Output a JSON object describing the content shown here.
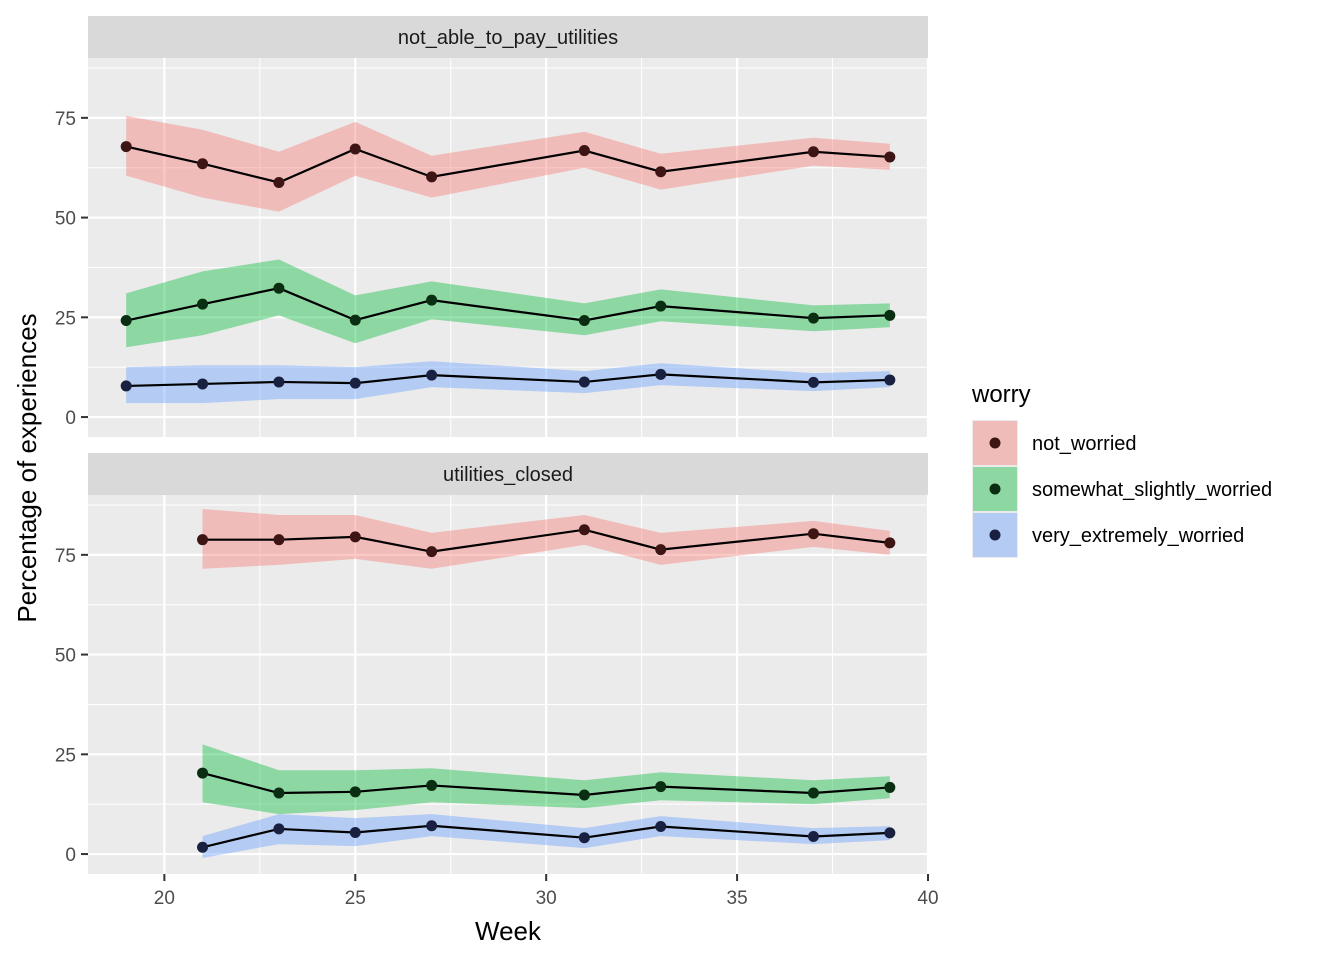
{
  "chart_data": {
    "type": "line",
    "xlabel": "Week",
    "ylabel": "Percentage of experiences",
    "xlim": [
      18,
      40
    ],
    "ylim": [
      -5,
      90
    ],
    "x_ticks": [
      20,
      25,
      30,
      35,
      40
    ],
    "y_ticks": [
      0,
      25,
      50,
      75
    ],
    "legend": {
      "title": "worry",
      "placement": "right",
      "entries": [
        "not_worried",
        "somewhat_slightly_worried",
        "very_extremely_worried"
      ]
    },
    "series_colors": {
      "not_worried": {
        "ribbon": "#F8766D",
        "point": "#3d1515"
      },
      "somewhat_slightly_worried": {
        "ribbon": "#00BA38",
        "point": "#0a2e12"
      },
      "very_extremely_worried": {
        "ribbon": "#619CFF",
        "point": "#1a2140"
      }
    },
    "panels": [
      {
        "name": "not_able_to_pay_utilities",
        "series": [
          {
            "key": "not_worried",
            "points": [
              {
                "x": 19,
                "y": 67.8,
                "lo": 60.5,
                "hi": 75.5
              },
              {
                "x": 21,
                "y": 63.5,
                "lo": 55.0,
                "hi": 72.0
              },
              {
                "x": 23,
                "y": 58.8,
                "lo": 51.5,
                "hi": 66.5
              },
              {
                "x": 25,
                "y": 67.2,
                "lo": 60.5,
                "hi": 74.0
              },
              {
                "x": 27,
                "y": 60.2,
                "lo": 55.0,
                "hi": 65.5
              },
              {
                "x": 31,
                "y": 66.8,
                "lo": 62.5,
                "hi": 71.5
              },
              {
                "x": 33,
                "y": 61.5,
                "lo": 57.0,
                "hi": 66.0
              },
              {
                "x": 37,
                "y": 66.5,
                "lo": 63.0,
                "hi": 70.0
              },
              {
                "x": 39,
                "y": 65.2,
                "lo": 62.0,
                "hi": 68.5
              }
            ]
          },
          {
            "key": "somewhat_slightly_worried",
            "points": [
              {
                "x": 19,
                "y": 24.2,
                "lo": 17.5,
                "hi": 31.0
              },
              {
                "x": 21,
                "y": 28.3,
                "lo": 20.5,
                "hi": 36.5
              },
              {
                "x": 23,
                "y": 32.3,
                "lo": 25.5,
                "hi": 39.5
              },
              {
                "x": 25,
                "y": 24.3,
                "lo": 18.5,
                "hi": 30.5
              },
              {
                "x": 27,
                "y": 29.3,
                "lo": 24.5,
                "hi": 34.0
              },
              {
                "x": 31,
                "y": 24.2,
                "lo": 20.5,
                "hi": 28.5
              },
              {
                "x": 33,
                "y": 27.8,
                "lo": 24.0,
                "hi": 32.0
              },
              {
                "x": 37,
                "y": 24.8,
                "lo": 21.5,
                "hi": 28.0
              },
              {
                "x": 39,
                "y": 25.5,
                "lo": 22.5,
                "hi": 28.5
              }
            ]
          },
          {
            "key": "very_extremely_worried",
            "points": [
              {
                "x": 19,
                "y": 7.8,
                "lo": 3.5,
                "hi": 12.5
              },
              {
                "x": 21,
                "y": 8.3,
                "lo": 3.5,
                "hi": 13.0
              },
              {
                "x": 23,
                "y": 8.8,
                "lo": 4.5,
                "hi": 13.0
              },
              {
                "x": 25,
                "y": 8.5,
                "lo": 4.5,
                "hi": 12.5
              },
              {
                "x": 27,
                "y": 10.5,
                "lo": 7.5,
                "hi": 14.0
              },
              {
                "x": 31,
                "y": 8.8,
                "lo": 6.0,
                "hi": 11.5
              },
              {
                "x": 33,
                "y": 10.7,
                "lo": 8.0,
                "hi": 13.5
              },
              {
                "x": 37,
                "y": 8.7,
                "lo": 6.5,
                "hi": 11.0
              },
              {
                "x": 39,
                "y": 9.3,
                "lo": 7.5,
                "hi": 11.5
              }
            ]
          }
        ]
      },
      {
        "name": "utilities_closed",
        "series": [
          {
            "key": "not_worried",
            "points": [
              {
                "x": 21,
                "y": 78.8,
                "lo": 71.5,
                "hi": 86.5
              },
              {
                "x": 23,
                "y": 78.8,
                "lo": 72.5,
                "hi": 85.0
              },
              {
                "x": 25,
                "y": 79.5,
                "lo": 74.0,
                "hi": 85.0
              },
              {
                "x": 27,
                "y": 75.8,
                "lo": 71.5,
                "hi": 80.5
              },
              {
                "x": 31,
                "y": 81.3,
                "lo": 77.5,
                "hi": 85.0
              },
              {
                "x": 33,
                "y": 76.3,
                "lo": 72.5,
                "hi": 80.5
              },
              {
                "x": 37,
                "y": 80.3,
                "lo": 77.0,
                "hi": 83.5
              },
              {
                "x": 39,
                "y": 78.0,
                "lo": 75.0,
                "hi": 81.0
              }
            ]
          },
          {
            "key": "somewhat_slightly_worried",
            "points": [
              {
                "x": 21,
                "y": 20.3,
                "lo": 13.0,
                "hi": 27.5
              },
              {
                "x": 23,
                "y": 15.3,
                "lo": 10.0,
                "hi": 21.0
              },
              {
                "x": 25,
                "y": 15.6,
                "lo": 11.0,
                "hi": 21.0
              },
              {
                "x": 27,
                "y": 17.2,
                "lo": 13.0,
                "hi": 21.5
              },
              {
                "x": 31,
                "y": 14.8,
                "lo": 11.5,
                "hi": 18.5
              },
              {
                "x": 33,
                "y": 16.9,
                "lo": 13.5,
                "hi": 20.5
              },
              {
                "x": 37,
                "y": 15.3,
                "lo": 12.5,
                "hi": 18.5
              },
              {
                "x": 39,
                "y": 16.7,
                "lo": 14.0,
                "hi": 19.5
              }
            ]
          },
          {
            "key": "very_extremely_worried",
            "points": [
              {
                "x": 21,
                "y": 1.7,
                "lo": -1.0,
                "hi": 4.5
              },
              {
                "x": 23,
                "y": 6.3,
                "lo": 2.5,
                "hi": 10.0
              },
              {
                "x": 25,
                "y": 5.4,
                "lo": 2.0,
                "hi": 9.0
              },
              {
                "x": 27,
                "y": 7.1,
                "lo": 4.5,
                "hi": 10.0
              },
              {
                "x": 31,
                "y": 4.1,
                "lo": 1.5,
                "hi": 6.5
              },
              {
                "x": 33,
                "y": 6.9,
                "lo": 4.5,
                "hi": 9.5
              },
              {
                "x": 37,
                "y": 4.4,
                "lo": 2.5,
                "hi": 6.5
              },
              {
                "x": 39,
                "y": 5.3,
                "lo": 3.5,
                "hi": 7.0
              }
            ]
          }
        ]
      }
    ]
  }
}
